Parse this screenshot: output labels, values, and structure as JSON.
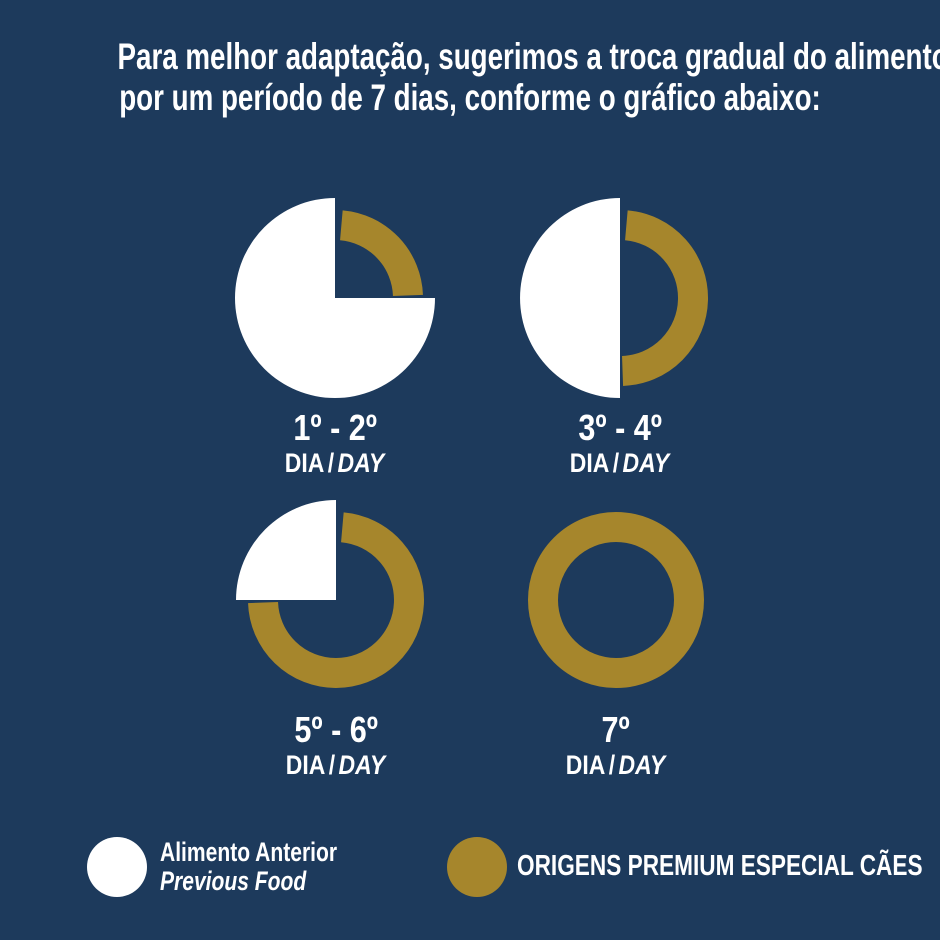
{
  "background_color": "#1d3a5c",
  "colors": {
    "previous_food": "#ffffff",
    "new_food": "#a6862c",
    "text": "#ffffff"
  },
  "title": {
    "line1": "Para melhor adaptação, sugerimos a troca gradual do alimento,",
    "line2": "por um período de 7 dias, conforme o gráfico abaixo:"
  },
  "chart_data": {
    "type": "pie",
    "unit": "percent",
    "legend_position": "bottom",
    "charts": [
      {
        "label": "1º - 2º",
        "caption_local": "DIA",
        "caption_sep": "/",
        "caption_en": "DAY",
        "series": {
          "previous_food_pct": 75,
          "new_food_pct": 25
        }
      },
      {
        "label": "3º - 4º",
        "caption_local": "DIA",
        "caption_sep": "/",
        "caption_en": "DAY",
        "series": {
          "previous_food_pct": 50,
          "new_food_pct": 50
        }
      },
      {
        "label": "5º - 6º",
        "caption_local": "DIA",
        "caption_sep": "/",
        "caption_en": "DAY",
        "series": {
          "previous_food_pct": 25,
          "new_food_pct": 75
        }
      },
      {
        "label": "7º",
        "caption_local": "DIA",
        "caption_sep": "/",
        "caption_en": "DAY",
        "series": {
          "previous_food_pct": 0,
          "new_food_pct": 100
        }
      }
    ],
    "legend": [
      {
        "swatch_color": "#ffffff",
        "label_local": "Alimento Anterior",
        "label_en": "Previous Food"
      },
      {
        "swatch_color": "#a6862c",
        "label": "ORIGENS PREMIUM ESPECIAL CÃES"
      }
    ]
  }
}
